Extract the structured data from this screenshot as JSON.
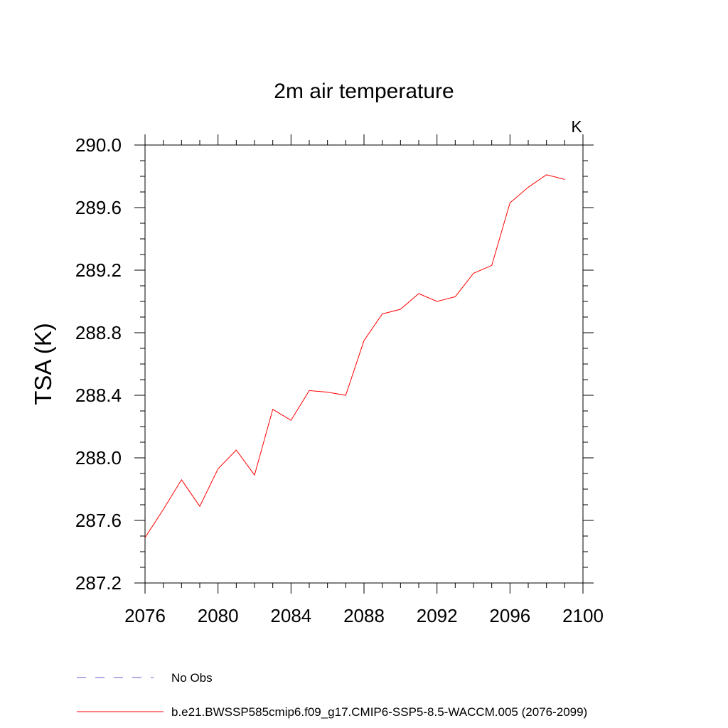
{
  "chart_data": {
    "type": "line",
    "title": "2m air temperature",
    "ylabel": "TSA  (K)",
    "xlabel": "",
    "units_label": "K",
    "xlim": [
      2076,
      2100
    ],
    "ylim": [
      287.2,
      290.0
    ],
    "x_ticks": [
      2076,
      2080,
      2084,
      2088,
      2092,
      2096,
      2100
    ],
    "y_ticks": [
      "287.2",
      "287.6",
      "288.0",
      "288.4",
      "288.8",
      "289.2",
      "289.6",
      "290.0"
    ],
    "grid": false,
    "series": [
      {
        "name": "b.e21.BWSSP585cmip6.f09_g17.CMIP6-SSP5-8.5-WACCM.005 (2076-2099)",
        "color": "#ff0000",
        "style": "solid",
        "x": [
          2076,
          2077,
          2078,
          2079,
          2080,
          2081,
          2082,
          2083,
          2084,
          2085,
          2086,
          2087,
          2088,
          2089,
          2090,
          2091,
          2092,
          2093,
          2094,
          2095,
          2096,
          2097,
          2098,
          2099
        ],
        "y": [
          287.49,
          287.67,
          287.86,
          287.69,
          287.93,
          288.05,
          287.89,
          288.31,
          288.24,
          288.43,
          288.42,
          288.4,
          288.75,
          288.92,
          288.95,
          289.05,
          289.0,
          289.03,
          289.18,
          289.23,
          289.63,
          289.73,
          289.81,
          289.78
        ]
      }
    ],
    "legend": {
      "position": "bottom-left",
      "entries": [
        {
          "label": "No Obs",
          "color": "#6a5acd",
          "style": "dashed"
        },
        {
          "label": "b.e21.BWSSP585cmip6.f09_g17.CMIP6-SSP5-8.5-WACCM.005 (2076-2099)",
          "color": "#ff0000",
          "style": "solid"
        }
      ]
    }
  }
}
